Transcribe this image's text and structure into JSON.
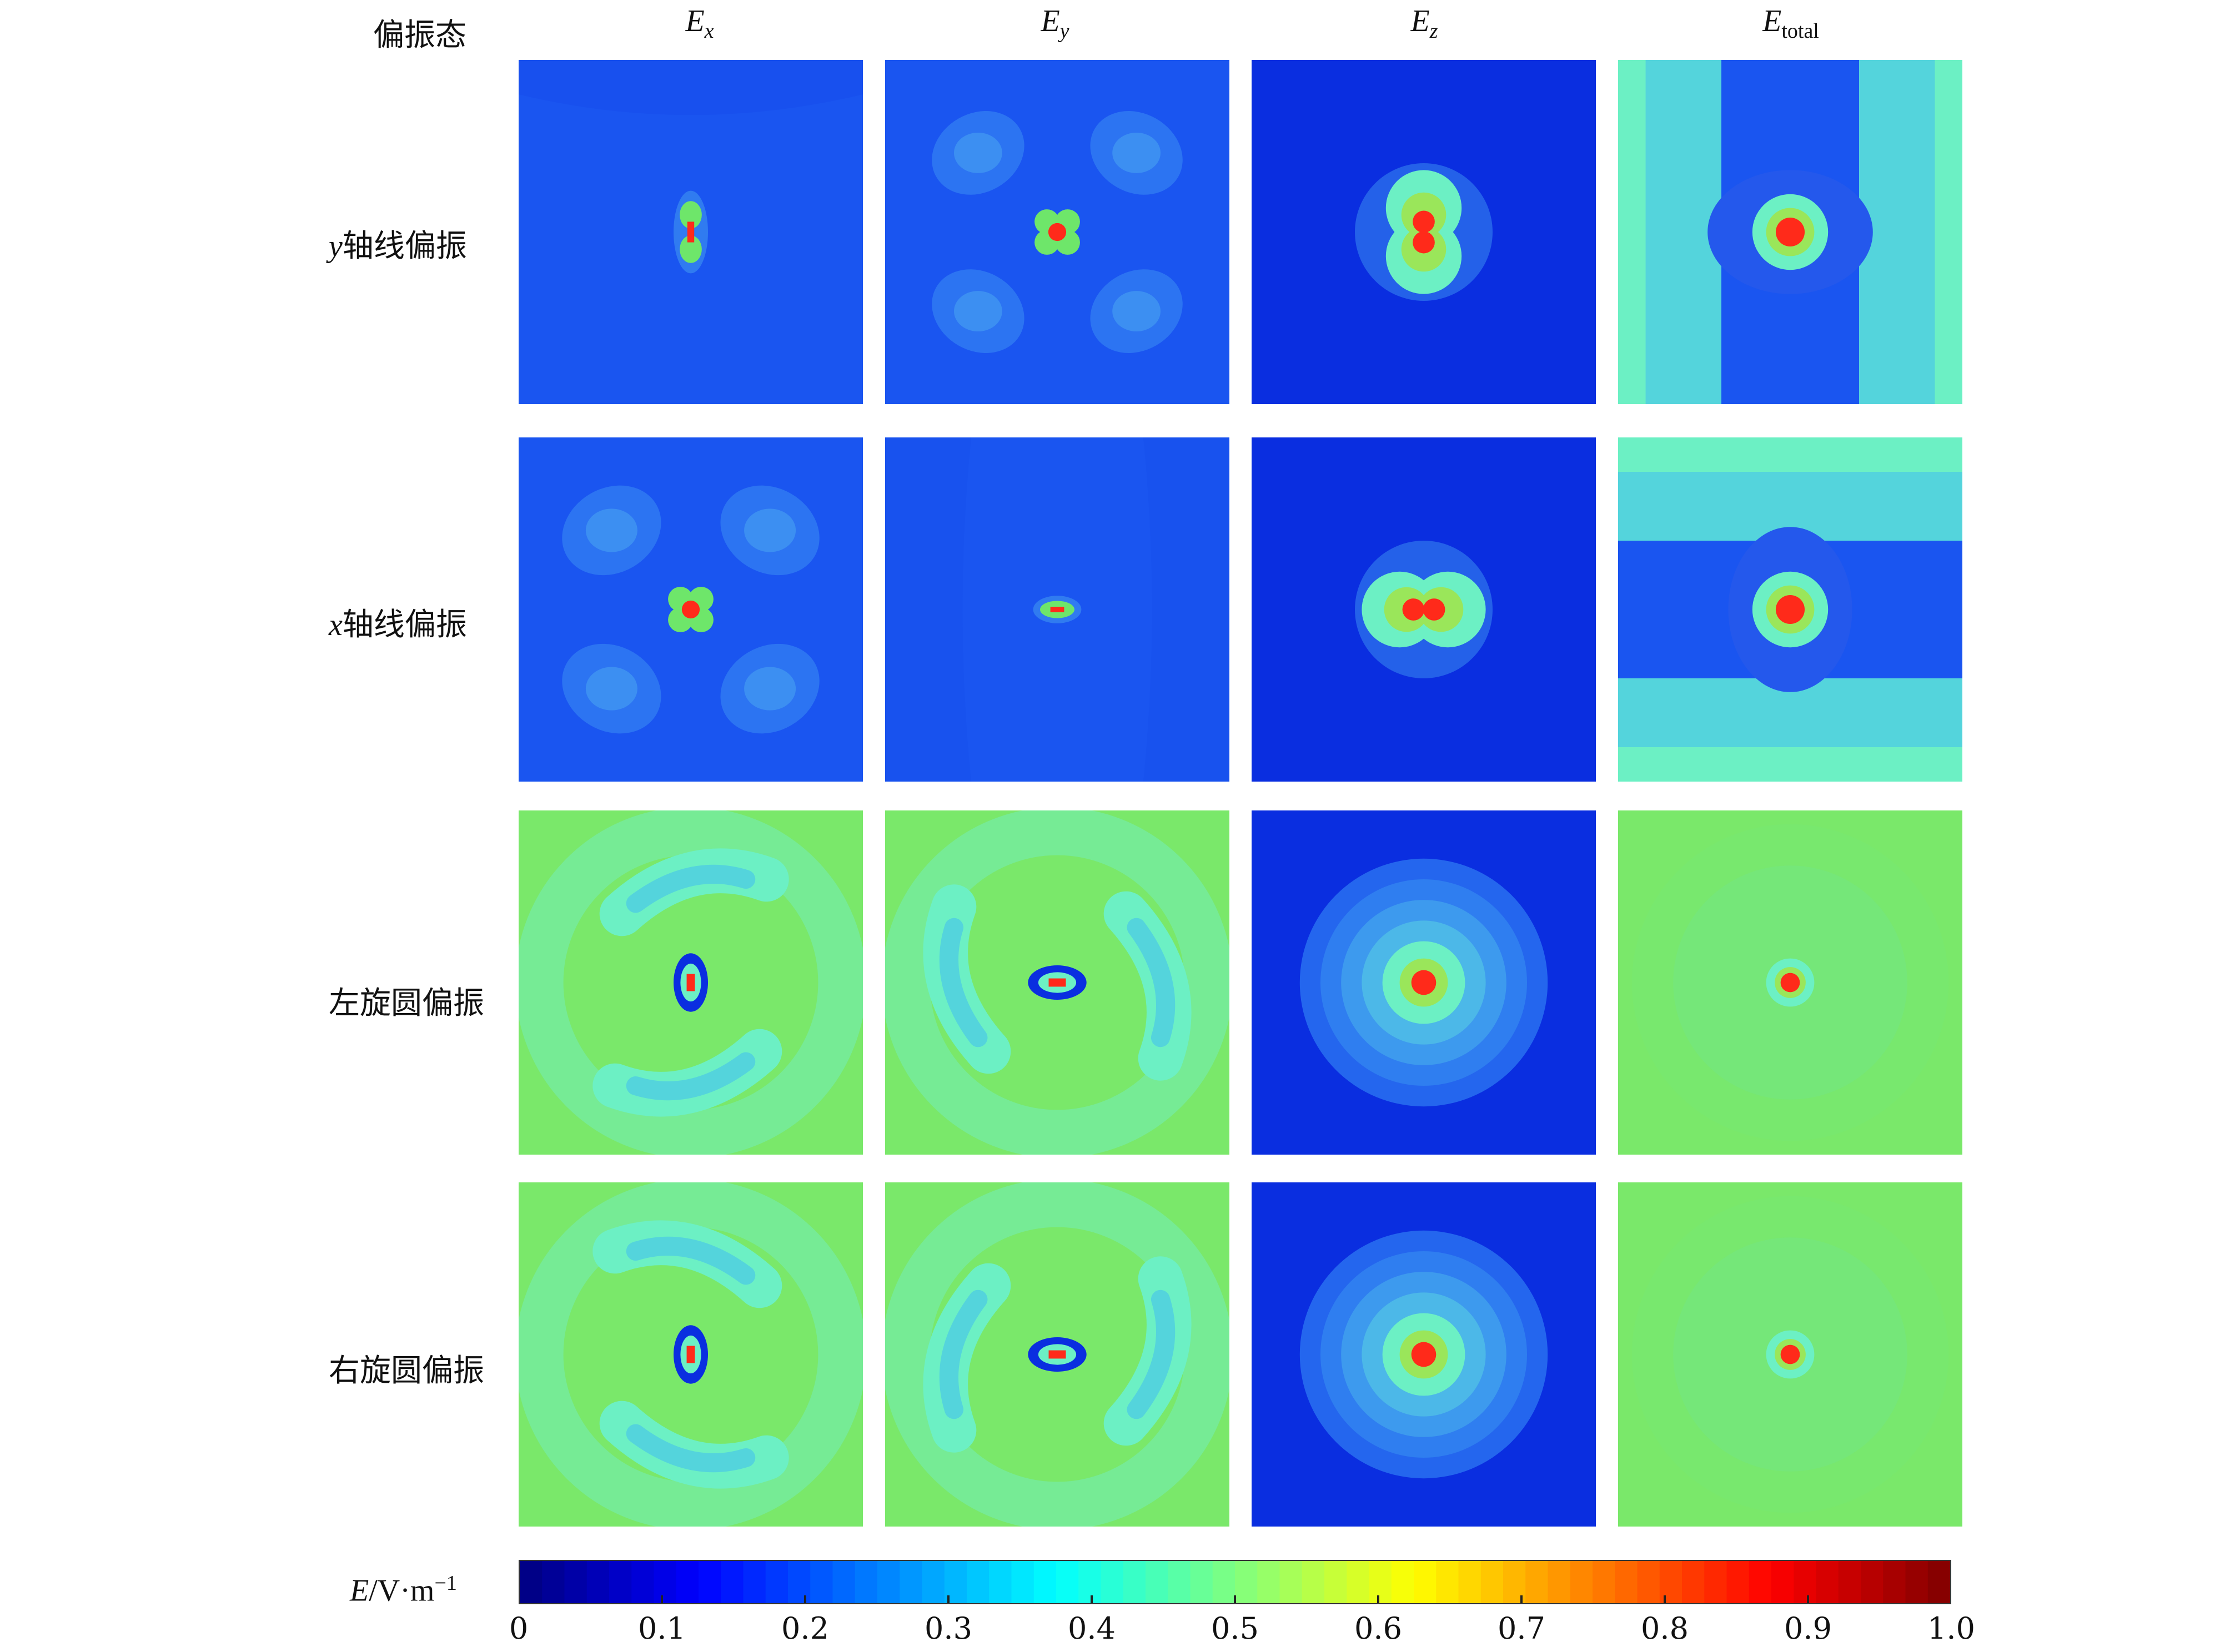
{
  "corner_label": "偏振态",
  "columns": [
    {
      "main": "E",
      "sub": "x",
      "sub_italic": true
    },
    {
      "main": "E",
      "sub": "y",
      "sub_italic": true
    },
    {
      "main": "E",
      "sub": "z",
      "sub_italic": true
    },
    {
      "main": "E",
      "sub": "total",
      "sub_italic": false
    }
  ],
  "rows": [
    {
      "var": "y",
      "text": "轴线偏振"
    },
    {
      "var": "x",
      "text": "轴线偏振"
    },
    {
      "var": "",
      "text": "左旋圆偏振"
    },
    {
      "var": "",
      "text": "右旋圆偏振"
    }
  ],
  "colorbar": {
    "label_var": "E",
    "label_unit": "/V·m",
    "label_exp": "−1",
    "ticks": [
      "0",
      "0.1",
      "0.2",
      "0.3",
      "0.4",
      "0.5",
      "0.6",
      "0.7",
      "0.8",
      "0.9",
      "1.0"
    ],
    "colormap": "jet"
  },
  "colors": {
    "deep_blue": "#0a2ee0",
    "blue": "#1a55f0",
    "light_blue": "#3a8cf0",
    "cyan": "#54d4dc",
    "aqua": "#6cf0c4",
    "green": "#6ee66a",
    "yellow_green": "#9ae65a",
    "red": "#ff2a1a",
    "dark_red": "#c40000"
  }
}
